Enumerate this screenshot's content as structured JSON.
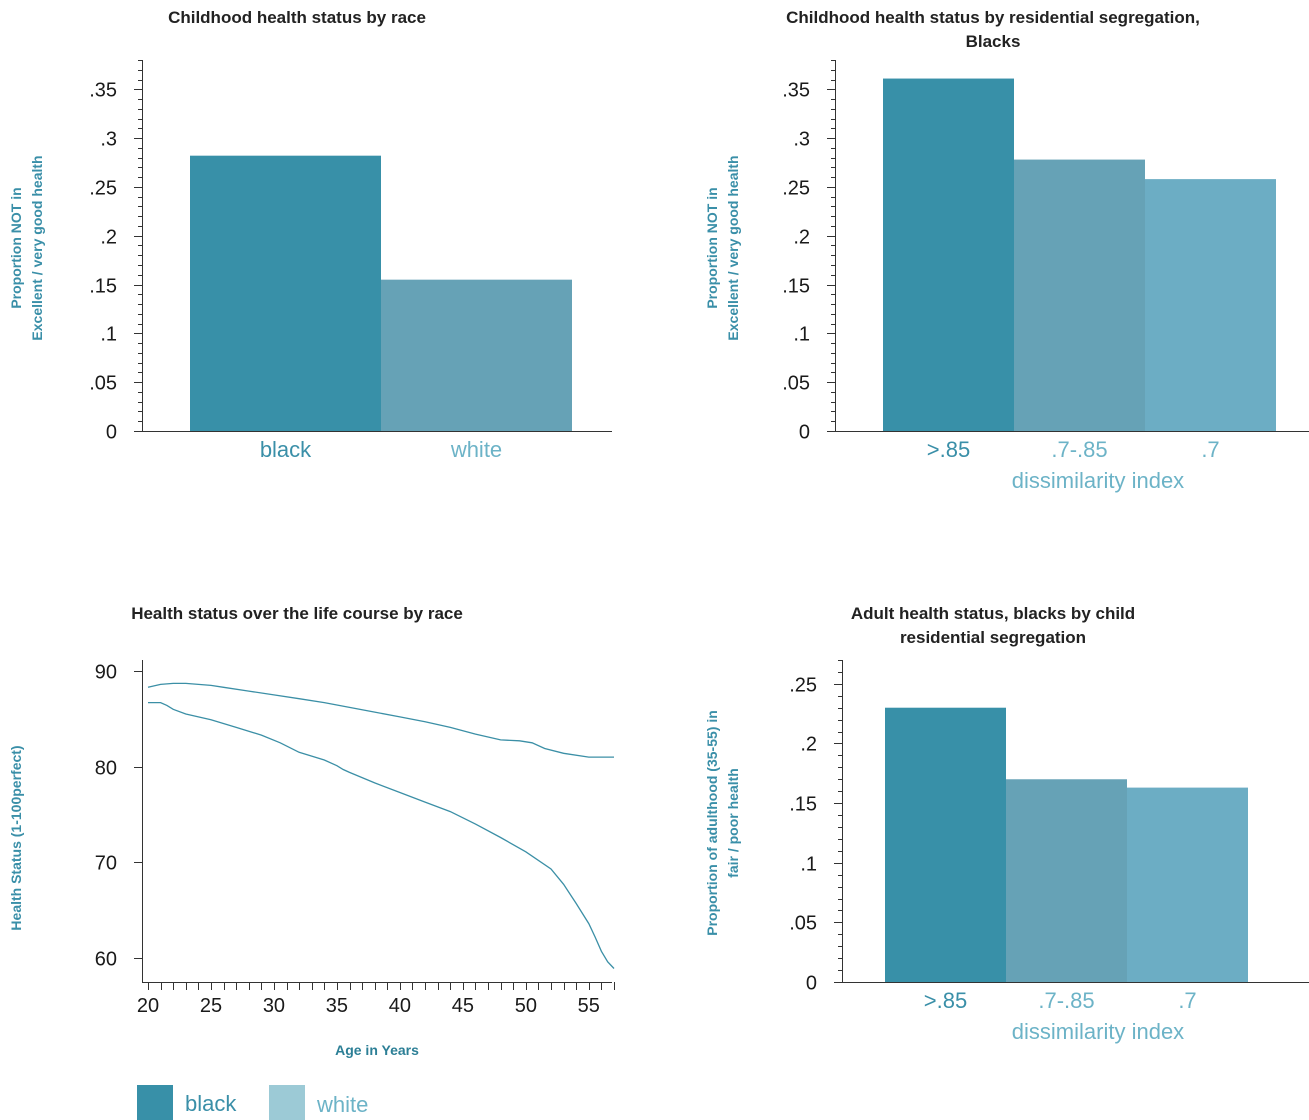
{
  "colors": {
    "dark": "#3890a8",
    "mid": "#66a2b6",
    "light": "#6cadc4",
    "legend_white": "#9ccad6",
    "line": "#3b8fa6",
    "title": "#222222",
    "label": "#3a8fa8",
    "cat_dark": "#3a8fa8",
    "cat_light": "#6cb3c7"
  },
  "chart_data": [
    {
      "type": "bar",
      "title": "Childhood health status by race",
      "ylabel": [
        "Proportion NOT in",
        "Excellent / very good health"
      ],
      "xlabel": "",
      "categories": [
        "black",
        "white"
      ],
      "values": [
        0.282,
        0.155
      ],
      "yticks": [
        0,
        0.05,
        0.1,
        0.15,
        0.2,
        0.25,
        0.3,
        0.35
      ],
      "ytick_labels": [
        "0",
        ".05",
        ".1",
        ".15",
        ".2",
        ".25",
        ".3",
        ".35"
      ],
      "ylim": [
        0,
        0.38
      ],
      "grid": false
    },
    {
      "type": "bar",
      "title": [
        "Childhood health status by residential segregation,",
        "Blacks"
      ],
      "ylabel": [
        "Proportion NOT in",
        "Excellent / very good health"
      ],
      "xlabel": "dissimilarity index",
      "categories": [
        ">.85",
        ".7-.85",
        ".7"
      ],
      "values": [
        0.361,
        0.278,
        0.258
      ],
      "yticks": [
        0,
        0.05,
        0.1,
        0.15,
        0.2,
        0.25,
        0.3,
        0.35
      ],
      "ytick_labels": [
        "0",
        ".05",
        ".1",
        ".15",
        ".2",
        ".25",
        ".3",
        ".35"
      ],
      "ylim": [
        0,
        0.38
      ],
      "grid": false
    },
    {
      "type": "line",
      "title": "Health status over the life course by race",
      "ylabel": "Health Status (1-100perfect)",
      "xlabel": "Age in Years",
      "xticks": [
        20,
        25,
        30,
        35,
        40,
        45,
        50,
        55
      ],
      "yticks": [
        60,
        70,
        80,
        90
      ],
      "xlim": [
        19.8,
        57
      ],
      "ylim": [
        59,
        91
      ],
      "grid": false,
      "series": [
        {
          "x": [
            20,
            21,
            22,
            23,
            24,
            25,
            26,
            28,
            30,
            32,
            34,
            36,
            38,
            40,
            42,
            44,
            46,
            48,
            49.5,
            50.5,
            51.5,
            53,
            55,
            56,
            57
          ],
          "y": [
            88.3,
            88.6,
            88.7,
            88.7,
            88.6,
            88.5,
            88.3,
            87.9,
            87.5,
            87.1,
            86.7,
            86.2,
            85.7,
            85.2,
            84.7,
            84.1,
            83.4,
            82.8,
            82.7,
            82.5,
            81.9,
            81.4,
            81.0,
            81.0,
            81.0
          ]
        },
        {
          "x": [
            20,
            21,
            21.5,
            22,
            23,
            25,
            27,
            29,
            30.5,
            32,
            34,
            35,
            35.5,
            36,
            38,
            40,
            42,
            44,
            46,
            48,
            50,
            52,
            53,
            54,
            55,
            55.5,
            56,
            56.5,
            57
          ],
          "y": [
            86.7,
            86.7,
            86.4,
            86.0,
            85.5,
            84.9,
            84.1,
            83.3,
            82.5,
            81.5,
            80.7,
            80.1,
            79.7,
            79.4,
            78.3,
            77.3,
            76.3,
            75.3,
            74.0,
            72.6,
            71.1,
            69.3,
            67.7,
            65.7,
            63.6,
            62.2,
            60.7,
            59.6,
            58.9
          ]
        }
      ],
      "legend": {
        "placement": "bottom-left",
        "entries": [
          "black",
          "white"
        ]
      }
    },
    {
      "type": "bar",
      "title": [
        "Adult health status, blacks by child",
        "residential segregation"
      ],
      "ylabel": [
        "Proportion of adulthood (35-55) in",
        "fair / poor health"
      ],
      "xlabel": "dissimilarity index",
      "categories": [
        ">.85",
        ".7-.85",
        ".7"
      ],
      "values": [
        0.23,
        0.17,
        0.163
      ],
      "yticks": [
        0,
        0.05,
        0.1,
        0.15,
        0.2,
        0.25
      ],
      "ytick_labels": [
        "0",
        ".05",
        ".1",
        ".15",
        ".2",
        ".25"
      ],
      "ylim": [
        0,
        0.27
      ],
      "grid": false
    }
  ]
}
